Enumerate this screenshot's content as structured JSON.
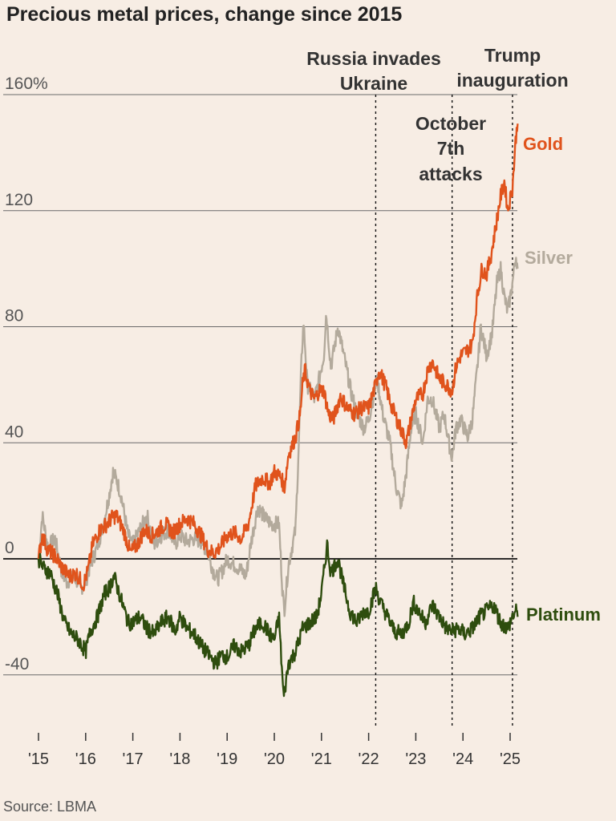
{
  "title": "Precious metal prices, change since 2015",
  "source": "Source: LBMA",
  "chart_data": {
    "type": "line",
    "title": "Precious metal prices, change since 2015",
    "xlabel": "",
    "ylabel": "",
    "xlim": [
      2015,
      2025.25
    ],
    "ylim": [
      -50,
      160
    ],
    "yticks": [
      {
        "value": 160,
        "label": "160%"
      },
      {
        "value": 120,
        "label": "120"
      },
      {
        "value": 80,
        "label": "80"
      },
      {
        "value": 40,
        "label": "40"
      },
      {
        "value": 0,
        "label": "0"
      },
      {
        "value": -40,
        "label": "-40"
      }
    ],
    "xticks": [
      {
        "value": 2015,
        "label": "'15"
      },
      {
        "value": 2016,
        "label": "'16"
      },
      {
        "value": 2017,
        "label": "'17"
      },
      {
        "value": 2018,
        "label": "'18"
      },
      {
        "value": 2019,
        "label": "'19"
      },
      {
        "value": 2020,
        "label": "'20"
      },
      {
        "value": 2021,
        "label": "'21"
      },
      {
        "value": 2022,
        "label": "'22"
      },
      {
        "value": 2023,
        "label": "'23"
      },
      {
        "value": 2024,
        "label": "'24"
      },
      {
        "value": 2025,
        "label": "'25"
      }
    ],
    "events": [
      {
        "x": 2022.15,
        "lines": [
          "Russia invades",
          "Ukraine"
        ]
      },
      {
        "x": 2023.77,
        "lines": [
          "October",
          "7th",
          "attacks"
        ]
      },
      {
        "x": 2025.05,
        "lines": [
          "Trump",
          "inauguration"
        ]
      }
    ],
    "series": [
      {
        "name": "Silver",
        "label": "Silver",
        "color": "#b3aa9c",
        "points": [
          [
            2015.0,
            0
          ],
          [
            2015.08,
            15
          ],
          [
            2015.2,
            4
          ],
          [
            2015.35,
            7
          ],
          [
            2015.5,
            -5
          ],
          [
            2015.6,
            -8
          ],
          [
            2015.75,
            -6
          ],
          [
            2015.9,
            -10
          ],
          [
            2016.0,
            -8
          ],
          [
            2016.1,
            -2
          ],
          [
            2016.2,
            2
          ],
          [
            2016.35,
            10
          ],
          [
            2016.5,
            22
          ],
          [
            2016.58,
            30
          ],
          [
            2016.66,
            27
          ],
          [
            2016.75,
            22
          ],
          [
            2016.9,
            8
          ],
          [
            2017.0,
            5
          ],
          [
            2017.15,
            10
          ],
          [
            2017.3,
            15
          ],
          [
            2017.45,
            5
          ],
          [
            2017.6,
            8
          ],
          [
            2017.75,
            10
          ],
          [
            2017.9,
            5
          ],
          [
            2018.0,
            8
          ],
          [
            2018.15,
            6
          ],
          [
            2018.3,
            7
          ],
          [
            2018.45,
            6
          ],
          [
            2018.6,
            2
          ],
          [
            2018.7,
            -4
          ],
          [
            2018.8,
            -7
          ],
          [
            2018.9,
            -4
          ],
          [
            2019.0,
            0
          ],
          [
            2019.15,
            -2
          ],
          [
            2019.3,
            -4
          ],
          [
            2019.4,
            -6
          ],
          [
            2019.5,
            5
          ],
          [
            2019.65,
            18
          ],
          [
            2019.8,
            14
          ],
          [
            2019.95,
            12
          ],
          [
            2020.1,
            12
          ],
          [
            2020.17,
            -10
          ],
          [
            2020.21,
            -18
          ],
          [
            2020.3,
            -2
          ],
          [
            2020.45,
            10
          ],
          [
            2020.52,
            40
          ],
          [
            2020.58,
            70
          ],
          [
            2020.62,
            82
          ],
          [
            2020.7,
            60
          ],
          [
            2020.85,
            55
          ],
          [
            2020.95,
            62
          ],
          [
            2021.05,
            70
          ],
          [
            2021.1,
            85
          ],
          [
            2021.2,
            66
          ],
          [
            2021.35,
            80
          ],
          [
            2021.5,
            68
          ],
          [
            2021.62,
            58
          ],
          [
            2021.75,
            50
          ],
          [
            2021.9,
            45
          ],
          [
            2022.0,
            48
          ],
          [
            2022.18,
            62
          ],
          [
            2022.3,
            50
          ],
          [
            2022.45,
            40
          ],
          [
            2022.58,
            25
          ],
          [
            2022.7,
            18
          ],
          [
            2022.8,
            30
          ],
          [
            2022.9,
            45
          ],
          [
            2023.0,
            50
          ],
          [
            2023.15,
            40
          ],
          [
            2023.25,
            55
          ],
          [
            2023.35,
            55
          ],
          [
            2023.5,
            45
          ],
          [
            2023.6,
            50
          ],
          [
            2023.7,
            40
          ],
          [
            2023.77,
            35
          ],
          [
            2023.85,
            45
          ],
          [
            2023.95,
            48
          ],
          [
            2024.1,
            42
          ],
          [
            2024.2,
            48
          ],
          [
            2024.3,
            65
          ],
          [
            2024.38,
            80
          ],
          [
            2024.5,
            70
          ],
          [
            2024.62,
            78
          ],
          [
            2024.72,
            95
          ],
          [
            2024.8,
            100
          ],
          [
            2024.88,
            90
          ],
          [
            2024.95,
            85
          ],
          [
            2025.05,
            95
          ],
          [
            2025.12,
            105
          ],
          [
            2025.16,
            100
          ]
        ]
      },
      {
        "name": "Gold",
        "label": "Gold",
        "color": "#e0531c",
        "points": [
          [
            2015.0,
            0
          ],
          [
            2015.08,
            8
          ],
          [
            2015.2,
            3
          ],
          [
            2015.35,
            1
          ],
          [
            2015.5,
            -3
          ],
          [
            2015.65,
            -6
          ],
          [
            2015.8,
            -5
          ],
          [
            2015.95,
            -9
          ],
          [
            2016.05,
            -4
          ],
          [
            2016.15,
            5
          ],
          [
            2016.3,
            10
          ],
          [
            2016.45,
            12
          ],
          [
            2016.55,
            14
          ],
          [
            2016.65,
            15
          ],
          [
            2016.8,
            10
          ],
          [
            2016.95,
            2
          ],
          [
            2017.1,
            5
          ],
          [
            2017.25,
            10
          ],
          [
            2017.4,
            8
          ],
          [
            2017.55,
            10
          ],
          [
            2017.7,
            12
          ],
          [
            2017.85,
            9
          ],
          [
            2018.0,
            12
          ],
          [
            2018.15,
            14
          ],
          [
            2018.3,
            12
          ],
          [
            2018.45,
            8
          ],
          [
            2018.6,
            3
          ],
          [
            2018.72,
            2
          ],
          [
            2018.85,
            4
          ],
          [
            2019.0,
            8
          ],
          [
            2019.15,
            9
          ],
          [
            2019.3,
            7
          ],
          [
            2019.45,
            12
          ],
          [
            2019.6,
            25
          ],
          [
            2019.75,
            28
          ],
          [
            2019.9,
            26
          ],
          [
            2020.0,
            30
          ],
          [
            2020.15,
            28
          ],
          [
            2020.21,
            24
          ],
          [
            2020.3,
            36
          ],
          [
            2020.45,
            42
          ],
          [
            2020.55,
            50
          ],
          [
            2020.6,
            60
          ],
          [
            2020.65,
            65
          ],
          [
            2020.75,
            58
          ],
          [
            2020.85,
            55
          ],
          [
            2020.95,
            58
          ],
          [
            2021.05,
            58
          ],
          [
            2021.15,
            50
          ],
          [
            2021.25,
            48
          ],
          [
            2021.4,
            56
          ],
          [
            2021.55,
            52
          ],
          [
            2021.7,
            50
          ],
          [
            2021.85,
            52
          ],
          [
            2022.0,
            52
          ],
          [
            2022.15,
            60
          ],
          [
            2022.22,
            65
          ],
          [
            2022.35,
            60
          ],
          [
            2022.5,
            52
          ],
          [
            2022.65,
            46
          ],
          [
            2022.8,
            40
          ],
          [
            2022.9,
            48
          ],
          [
            2023.0,
            55
          ],
          [
            2023.15,
            57
          ],
          [
            2023.25,
            65
          ],
          [
            2023.35,
            68
          ],
          [
            2023.5,
            62
          ],
          [
            2023.65,
            60
          ],
          [
            2023.77,
            58
          ],
          [
            2023.85,
            66
          ],
          [
            2023.95,
            70
          ],
          [
            2024.1,
            72
          ],
          [
            2024.2,
            74
          ],
          [
            2024.3,
            90
          ],
          [
            2024.4,
            100
          ],
          [
            2024.5,
            98
          ],
          [
            2024.6,
            105
          ],
          [
            2024.7,
            115
          ],
          [
            2024.8,
            125
          ],
          [
            2024.88,
            130
          ],
          [
            2024.95,
            120
          ],
          [
            2025.05,
            128
          ],
          [
            2025.12,
            145
          ],
          [
            2025.16,
            150
          ]
        ]
      },
      {
        "name": "Platinum",
        "label": "Platinum",
        "color": "#2e4d0e",
        "points": [
          [
            2015.0,
            0
          ],
          [
            2015.1,
            -3
          ],
          [
            2015.25,
            -5
          ],
          [
            2015.4,
            -12
          ],
          [
            2015.55,
            -22
          ],
          [
            2015.7,
            -26
          ],
          [
            2015.85,
            -28
          ],
          [
            2016.0,
            -32
          ],
          [
            2016.1,
            -25
          ],
          [
            2016.25,
            -20
          ],
          [
            2016.4,
            -12
          ],
          [
            2016.5,
            -10
          ],
          [
            2016.6,
            -6
          ],
          [
            2016.75,
            -14
          ],
          [
            2016.9,
            -22
          ],
          [
            2017.0,
            -22
          ],
          [
            2017.15,
            -20
          ],
          [
            2017.3,
            -24
          ],
          [
            2017.45,
            -26
          ],
          [
            2017.6,
            -22
          ],
          [
            2017.75,
            -20
          ],
          [
            2017.9,
            -25
          ],
          [
            2018.0,
            -20
          ],
          [
            2018.15,
            -24
          ],
          [
            2018.3,
            -26
          ],
          [
            2018.45,
            -30
          ],
          [
            2018.6,
            -33
          ],
          [
            2018.75,
            -36
          ],
          [
            2018.9,
            -33
          ],
          [
            2019.0,
            -34
          ],
          [
            2019.15,
            -30
          ],
          [
            2019.3,
            -32
          ],
          [
            2019.45,
            -30
          ],
          [
            2019.6,
            -24
          ],
          [
            2019.75,
            -22
          ],
          [
            2019.9,
            -26
          ],
          [
            2020.0,
            -28
          ],
          [
            2020.1,
            -20
          ],
          [
            2020.16,
            -38
          ],
          [
            2020.2,
            -48
          ],
          [
            2020.3,
            -36
          ],
          [
            2020.45,
            -32
          ],
          [
            2020.6,
            -24
          ],
          [
            2020.75,
            -22
          ],
          [
            2020.9,
            -20
          ],
          [
            2021.0,
            -12
          ],
          [
            2021.12,
            5
          ],
          [
            2021.2,
            -5
          ],
          [
            2021.35,
            0
          ],
          [
            2021.45,
            -8
          ],
          [
            2021.6,
            -18
          ],
          [
            2021.75,
            -22
          ],
          [
            2021.9,
            -18
          ],
          [
            2022.0,
            -18
          ],
          [
            2022.15,
            -10
          ],
          [
            2022.25,
            -15
          ],
          [
            2022.4,
            -20
          ],
          [
            2022.55,
            -25
          ],
          [
            2022.7,
            -26
          ],
          [
            2022.85,
            -22
          ],
          [
            2022.95,
            -15
          ],
          [
            2023.05,
            -18
          ],
          [
            2023.2,
            -22
          ],
          [
            2023.35,
            -16
          ],
          [
            2023.5,
            -20
          ],
          [
            2023.65,
            -24
          ],
          [
            2023.77,
            -25
          ],
          [
            2023.9,
            -24
          ],
          [
            2024.05,
            -26
          ],
          [
            2024.2,
            -24
          ],
          [
            2024.35,
            -20
          ],
          [
            2024.5,
            -18
          ],
          [
            2024.65,
            -16
          ],
          [
            2024.8,
            -22
          ],
          [
            2024.95,
            -24
          ],
          [
            2025.05,
            -20
          ],
          [
            2025.12,
            -18
          ],
          [
            2025.16,
            -20
          ]
        ]
      }
    ]
  }
}
